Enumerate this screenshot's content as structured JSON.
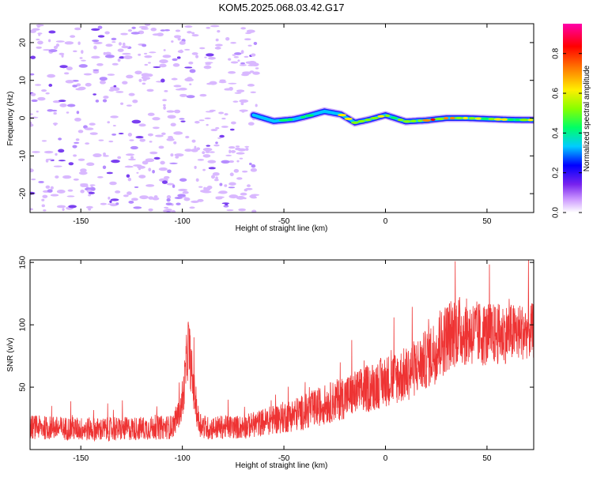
{
  "page_title": "KOM5.2025.068.03.42.G17",
  "chart_data": [
    {
      "type": "heatmap",
      "title": "KOM5.2025.068.03.42.G17",
      "xlabel": "Height of straight line (km)",
      "ylabel": "Frequency (Hz)",
      "xlim": [
        -175,
        73
      ],
      "ylim": [
        -25,
        25
      ],
      "xticks": [
        -150,
        -100,
        -50,
        0,
        50
      ],
      "xtick_labels": [
        "-150",
        "-100",
        "-50",
        "0",
        "50"
      ],
      "yticks": [
        -20,
        -10,
        0,
        10,
        20
      ],
      "ytick_labels": [
        "-20",
        "-10",
        "0",
        "10",
        "20"
      ],
      "noise_region_x": [
        -175,
        -63
      ],
      "signal_track": {
        "x": [
          -65,
          -55,
          -45,
          -38,
          -30,
          -22,
          -15,
          -8,
          0,
          10,
          20,
          30,
          40,
          50,
          60,
          73
        ],
        "y": [
          0.8,
          -0.8,
          -0.3,
          0.6,
          1.8,
          1.0,
          -1.2,
          -0.4,
          0.8,
          -0.9,
          -0.6,
          0.0,
          0.0,
          -0.2,
          -0.4,
          -0.5
        ]
      },
      "colorbar": {
        "label": "Normalized spectral amplitude",
        "range": [
          0,
          0.95
        ],
        "ticks": [
          0.0,
          0.2,
          0.4,
          0.6,
          0.8
        ],
        "tick_labels": [
          "0.0",
          "0.2",
          "0.4",
          "0.6",
          "0.8"
        ],
        "colors": [
          "#ffffff",
          "#cc99ff",
          "#7722ee",
          "#0000ff",
          "#00ccff",
          "#00ff66",
          "#88ff00",
          "#ffee00",
          "#ff8800",
          "#ff0000",
          "#ff00aa"
        ]
      }
    },
    {
      "type": "line",
      "xlabel": "Height of straight line (km)",
      "ylabel": "SNR (v/v)",
      "xlim": [
        -175,
        73
      ],
      "ylim": [
        0,
        152
      ],
      "xticks": [
        -150,
        -100,
        -50,
        0,
        50
      ],
      "xtick_labels": [
        "-150",
        "-100",
        "-50",
        "0",
        "50"
      ],
      "yticks": [
        50,
        100,
        150
      ],
      "ytick_labels": [
        "50",
        "100",
        "150"
      ],
      "line_color": "#ee3333",
      "series": [
        {
          "x": [
            -175,
            -160,
            -140,
            -120,
            -105,
            -100,
            -98,
            -97,
            -95,
            -92,
            -88,
            -80,
            -70,
            -60,
            -50,
            -40,
            -30,
            -20,
            -10,
            0,
            10,
            20,
            25,
            30,
            35,
            40,
            50,
            60,
            70,
            73
          ],
          "y": [
            18,
            17,
            16,
            17,
            18,
            35,
            70,
            85,
            55,
            22,
            17,
            18,
            18,
            22,
            26,
            30,
            36,
            42,
            48,
            55,
            60,
            72,
            80,
            90,
            96,
            94,
            92,
            93,
            95,
            95
          ],
          "noise": [
            6,
            6,
            6,
            6,
            6,
            8,
            14,
            16,
            12,
            7,
            6,
            6,
            6,
            7,
            8,
            9,
            10,
            11,
            12,
            13,
            14,
            15,
            17,
            18,
            18,
            17,
            16,
            15,
            14,
            14
          ]
        }
      ]
    }
  ]
}
